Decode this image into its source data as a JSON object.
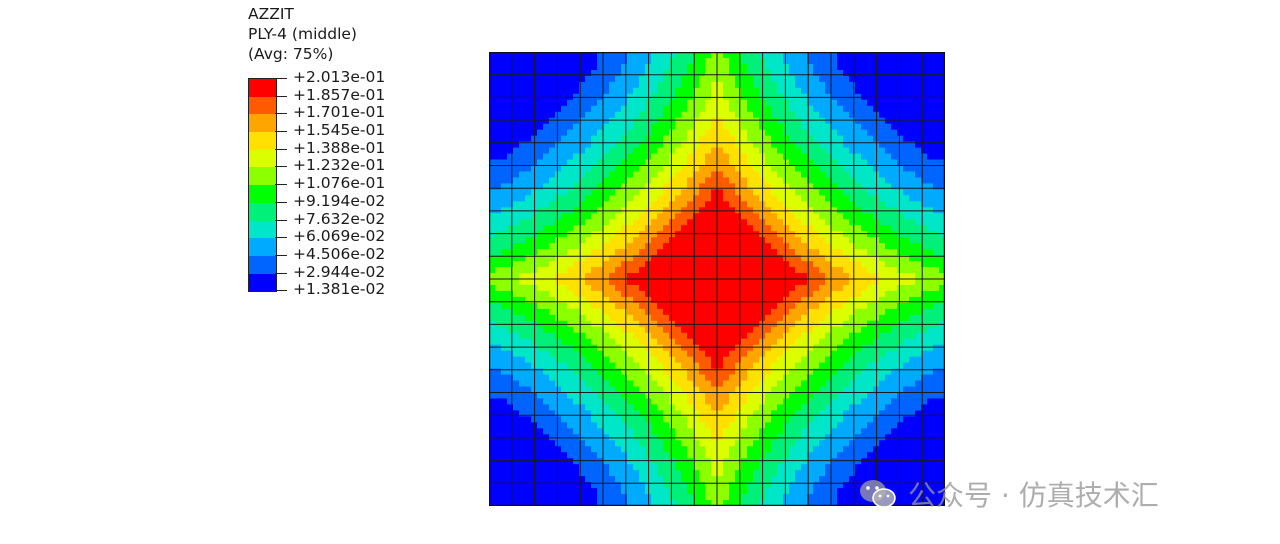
{
  "legend": {
    "variable": "AZZIT",
    "section": "PLY-4 (middle)",
    "averaging": "(Avg: 75%)",
    "levels": [
      "+2.013e-01",
      "+1.857e-01",
      "+1.701e-01",
      "+1.545e-01",
      "+1.388e-01",
      "+1.232e-01",
      "+1.076e-01",
      "+9.194e-02",
      "+7.632e-02",
      "+6.069e-02",
      "+4.506e-02",
      "+2.944e-02",
      "+1.381e-02"
    ],
    "colors": [
      "#ff0000",
      "#ff5a00",
      "#ffa500",
      "#ffe100",
      "#dcff00",
      "#8cff00",
      "#00ff00",
      "#00f07a",
      "#00e6c8",
      "#00aaff",
      "#0064ff",
      "#0000ff"
    ]
  },
  "contour": {
    "min": 0.01381,
    "max": 0.2013,
    "mesh_divisions": 20
  },
  "watermark": {
    "icon": "wechat-icon",
    "text": "公众号 · 仿真技术汇"
  }
}
